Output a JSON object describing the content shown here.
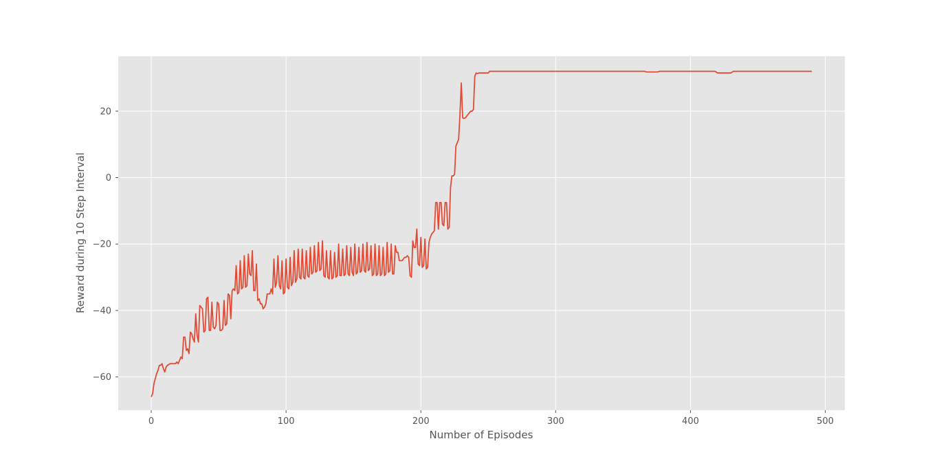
{
  "chart_data": {
    "type": "line",
    "title": "",
    "xlabel": "Number of Episodes",
    "ylabel": "Reward during 10 Step Interval",
    "xlim": [
      -24.5,
      514.5
    ],
    "ylim": [
      -70,
      36.5
    ],
    "xticks": [
      0,
      100,
      200,
      300,
      400,
      500
    ],
    "yticks": [
      -60,
      -40,
      -20,
      0,
      20
    ],
    "grid": true,
    "legend": "none",
    "colors": {
      "line": "#E24A33",
      "plot_bg": "#E5E5E5",
      "grid": "#FFFFFF",
      "text": "#555555"
    },
    "series": [
      {
        "points": [
          [
            0,
            -66
          ],
          [
            1,
            -65
          ],
          [
            2,
            -62
          ],
          [
            3,
            -60.5
          ],
          [
            4,
            -59
          ],
          [
            5,
            -58
          ],
          [
            6,
            -56.5
          ],
          [
            7,
            -56.5
          ],
          [
            8,
            -56
          ],
          [
            9,
            -57.5
          ],
          [
            10,
            -58.5
          ],
          [
            11,
            -57
          ],
          [
            12,
            -56.5
          ],
          [
            14,
            -56
          ],
          [
            16,
            -56
          ],
          [
            18,
            -56
          ],
          [
            19,
            -55.5
          ],
          [
            20,
            -56
          ],
          [
            21,
            -55
          ],
          [
            22,
            -54
          ],
          [
            23,
            -54.5
          ],
          [
            24,
            -48
          ],
          [
            25,
            -48
          ],
          [
            26,
            -52
          ],
          [
            27,
            -51.5
          ],
          [
            28,
            -53
          ],
          [
            29,
            -46.5
          ],
          [
            30,
            -47
          ],
          [
            31,
            -48.5
          ],
          [
            32,
            -49.5
          ],
          [
            33,
            -41
          ],
          [
            34,
            -47.5
          ],
          [
            35,
            -49.5
          ],
          [
            36,
            -38.5
          ],
          [
            37,
            -39
          ],
          [
            38,
            -39.5
          ],
          [
            39,
            -46.5
          ],
          [
            40,
            -46
          ],
          [
            41,
            -36.5
          ],
          [
            42,
            -36
          ],
          [
            43,
            -46
          ],
          [
            44,
            -46
          ],
          [
            45,
            -37.5
          ],
          [
            46,
            -45
          ],
          [
            47,
            -45.5
          ],
          [
            48,
            -44.5
          ],
          [
            49,
            -37.5
          ],
          [
            50,
            -38
          ],
          [
            51,
            -46
          ],
          [
            52,
            -46
          ],
          [
            53,
            -45.5
          ],
          [
            54,
            -37
          ],
          [
            55,
            -44.5
          ],
          [
            56,
            -44
          ],
          [
            57,
            -35
          ],
          [
            58,
            -35.5
          ],
          [
            59,
            -42.5
          ],
          [
            60,
            -34
          ],
          [
            61,
            -33.5
          ],
          [
            62,
            -34
          ],
          [
            63,
            -26.5
          ],
          [
            64,
            -35
          ],
          [
            65,
            -34.5
          ],
          [
            66,
            -25
          ],
          [
            67,
            -33.5
          ],
          [
            68,
            -33
          ],
          [
            69,
            -23.5
          ],
          [
            70,
            -33
          ],
          [
            71,
            -32.5
          ],
          [
            72,
            -23
          ],
          [
            73,
            -29
          ],
          [
            74,
            -29.5
          ],
          [
            75,
            -22
          ],
          [
            76,
            -34
          ],
          [
            77,
            -34
          ],
          [
            78,
            -26
          ],
          [
            79,
            -37
          ],
          [
            80,
            -36.5
          ],
          [
            81,
            -38
          ],
          [
            82,
            -38
          ],
          [
            83,
            -39.5
          ],
          [
            84,
            -39
          ],
          [
            85,
            -38
          ],
          [
            86,
            -35
          ],
          [
            87,
            -35
          ],
          [
            88,
            -35
          ],
          [
            89,
            -33.5
          ],
          [
            90,
            -35
          ],
          [
            91,
            -24.5
          ],
          [
            92,
            -33
          ],
          [
            93,
            -31.5
          ],
          [
            94,
            -23.5
          ],
          [
            95,
            -32.5
          ],
          [
            96,
            -33.5
          ],
          [
            97,
            -25
          ],
          [
            98,
            -35
          ],
          [
            99,
            -34.5
          ],
          [
            100,
            -24.5
          ],
          [
            101,
            -33
          ],
          [
            102,
            -33.5
          ],
          [
            103,
            -24
          ],
          [
            104,
            -32.5
          ],
          [
            105,
            -31.5
          ],
          [
            106,
            -22
          ],
          [
            107,
            -31.5
          ],
          [
            108,
            -30.5
          ],
          [
            109,
            -21.5
          ],
          [
            110,
            -30
          ],
          [
            111,
            -30.5
          ],
          [
            112,
            -21.5
          ],
          [
            113,
            -30
          ],
          [
            114,
            -30.5
          ],
          [
            115,
            -22
          ],
          [
            116,
            -29.5
          ],
          [
            117,
            -30
          ],
          [
            118,
            -21
          ],
          [
            119,
            -29
          ],
          [
            120,
            -28.5
          ],
          [
            121,
            -20.5
          ],
          [
            122,
            -28.5
          ],
          [
            123,
            -28
          ],
          [
            124,
            -19.5
          ],
          [
            125,
            -28
          ],
          [
            126,
            -27.5
          ],
          [
            127,
            -19
          ],
          [
            128,
            -29.5
          ],
          [
            129,
            -30
          ],
          [
            130,
            -22
          ],
          [
            131,
            -30
          ],
          [
            132,
            -30.5
          ],
          [
            133,
            -22
          ],
          [
            134,
            -30.5
          ],
          [
            135,
            -30
          ],
          [
            136,
            -22.5
          ],
          [
            137,
            -30
          ],
          [
            138,
            -29.5
          ],
          [
            139,
            -20
          ],
          [
            140,
            -29.5
          ],
          [
            141,
            -29.5
          ],
          [
            142,
            -21.5
          ],
          [
            143,
            -29.5
          ],
          [
            144,
            -29
          ],
          [
            145,
            -20.5
          ],
          [
            146,
            -29
          ],
          [
            147,
            -29.5
          ],
          [
            148,
            -21
          ],
          [
            149,
            -28.5
          ],
          [
            150,
            -29.5
          ],
          [
            151,
            -20
          ],
          [
            152,
            -29
          ],
          [
            153,
            -28.5
          ],
          [
            154,
            -21
          ],
          [
            155,
            -28.5
          ],
          [
            156,
            -28
          ],
          [
            157,
            -20
          ],
          [
            158,
            -28
          ],
          [
            159,
            -28.5
          ],
          [
            160,
            -19.5
          ],
          [
            161,
            -28
          ],
          [
            162,
            -27.5
          ],
          [
            163,
            -20.5
          ],
          [
            164,
            -29.5
          ],
          [
            165,
            -29
          ],
          [
            166,
            -20
          ],
          [
            167,
            -29.5
          ],
          [
            168,
            -29
          ],
          [
            169,
            -20.5
          ],
          [
            170,
            -29.5
          ],
          [
            171,
            -29
          ],
          [
            172,
            -21
          ],
          [
            173,
            -29.5
          ],
          [
            174,
            -29
          ],
          [
            175,
            -19.5
          ],
          [
            176,
            -28.5
          ],
          [
            177,
            -28
          ],
          [
            178,
            -20
          ],
          [
            179,
            -29
          ],
          [
            180,
            -29
          ],
          [
            181,
            -20.5
          ],
          [
            182,
            -22.5
          ],
          [
            183,
            -22.5
          ],
          [
            184,
            -25
          ],
          [
            185,
            -25
          ],
          [
            186,
            -25
          ],
          [
            187,
            -24.5
          ],
          [
            188,
            -24
          ],
          [
            189,
            -24
          ],
          [
            190,
            -23.5
          ],
          [
            191,
            -24
          ],
          [
            192,
            -29.5
          ],
          [
            193,
            -30
          ],
          [
            194,
            -19
          ],
          [
            195,
            -21
          ],
          [
            196,
            -21
          ],
          [
            197,
            -15.5
          ],
          [
            198,
            -26
          ],
          [
            199,
            -26.5
          ],
          [
            200,
            -18
          ],
          [
            201,
            -27
          ],
          [
            202,
            -26.5
          ],
          [
            203,
            -18.5
          ],
          [
            204,
            -27.5
          ],
          [
            205,
            -27
          ],
          [
            206,
            -19.5
          ],
          [
            207,
            -18
          ],
          [
            208,
            -17
          ],
          [
            209,
            -16.5
          ],
          [
            210,
            -16
          ],
          [
            211,
            -7.5
          ],
          [
            212,
            -7.5
          ],
          [
            213,
            -15.5
          ],
          [
            214,
            -7.5
          ],
          [
            215,
            -7.5
          ],
          [
            216,
            -14
          ],
          [
            217,
            -14.5
          ],
          [
            218,
            -7.5
          ],
          [
            219,
            -7.5
          ],
          [
            220,
            -15.5
          ],
          [
            221,
            -15
          ],
          [
            222,
            -3
          ],
          [
            223,
            0.5
          ],
          [
            224,
            0.5
          ],
          [
            225,
            1
          ],
          [
            226,
            9.5
          ],
          [
            227,
            10.5
          ],
          [
            228,
            11.5
          ],
          [
            229,
            19
          ],
          [
            230,
            28.5
          ],
          [
            231,
            18
          ],
          [
            232,
            17.8
          ],
          [
            233,
            18
          ],
          [
            234,
            18.5
          ],
          [
            235,
            19
          ],
          [
            236,
            19.5
          ],
          [
            237,
            20
          ],
          [
            238,
            20
          ],
          [
            239,
            20.5
          ],
          [
            240,
            30.5
          ],
          [
            241,
            31.5
          ],
          [
            242,
            31.3
          ],
          [
            243,
            31.5
          ],
          [
            244,
            31.5
          ],
          [
            246,
            31.5
          ],
          [
            248,
            31.5
          ],
          [
            250,
            31.5
          ],
          [
            251,
            32
          ],
          [
            260,
            32
          ],
          [
            300,
            32
          ],
          [
            350,
            32
          ],
          [
            366,
            32
          ],
          [
            367,
            31.8
          ],
          [
            376,
            31.8
          ],
          [
            377,
            32
          ],
          [
            400,
            32
          ],
          [
            418,
            32
          ],
          [
            419,
            31.8
          ],
          [
            420,
            31.5
          ],
          [
            430,
            31.5
          ],
          [
            431,
            31.8
          ],
          [
            432,
            32
          ],
          [
            460,
            32
          ],
          [
            490,
            32
          ]
        ]
      }
    ]
  }
}
